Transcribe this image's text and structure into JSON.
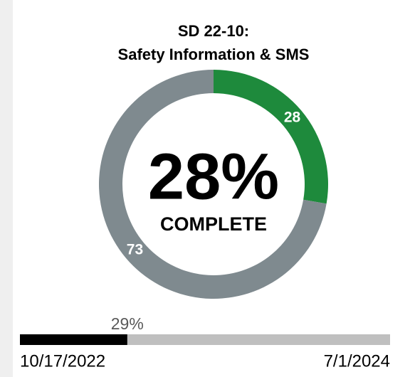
{
  "chart_data": {
    "type": "donut",
    "title": [
      "SD 22-10:",
      "Safety Information & SMS"
    ],
    "values": [
      28,
      73
    ],
    "colors": [
      "#1e8a3c",
      "#7f8a8f"
    ],
    "center_text": "28%",
    "center_subtext": "COMPLETE",
    "progress": {
      "value": 29,
      "label": "29%",
      "xlim": [
        0,
        100
      ],
      "start": "10/17/2022",
      "end": "7/1/2024",
      "color": "#000000",
      "track_color": "#bfbfbf"
    }
  }
}
